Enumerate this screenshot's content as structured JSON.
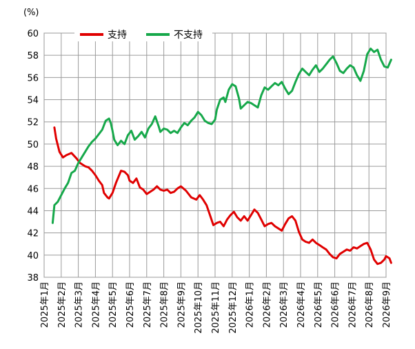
{
  "chart_data": {
    "type": "line",
    "title": "",
    "xlabel": "",
    "ylabel": "",
    "unit_label": "(%)",
    "ylim": [
      38,
      60
    ],
    "y_ticks": [
      "38",
      "40",
      "42",
      "44",
      "46",
      "48",
      "50",
      "52",
      "54",
      "56",
      "58",
      "60"
    ],
    "x_ticks": [
      "2025年1月",
      "2025年2月",
      "2025年3月",
      "2025年4月",
      "2025年5月",
      "2025年6月",
      "2025年7月",
      "2025年8月",
      "2025年9月",
      "2025年10月",
      "2025年11月",
      "2025年12月",
      "2026年1月",
      "2026年2月",
      "2026年3月",
      "2026年4月",
      "2026年5月",
      "2026年6月",
      "2026年7月",
      "2026年8月",
      "2026年9月"
    ],
    "x_unit": "months since 2025年1月",
    "grid": true,
    "legend_position": "top",
    "series": [
      {
        "name": "支持",
        "color": "#e00000",
        "x": [
          0.6,
          0.7,
          0.9,
          1.1,
          1.3,
          1.6,
          1.9,
          2.1,
          2.4,
          2.6,
          2.8,
          3.0,
          3.2,
          3.4,
          3.5,
          3.7,
          3.8,
          4.0,
          4.2,
          4.5,
          4.7,
          4.9,
          5.0,
          5.2,
          5.4,
          5.6,
          5.8,
          6.0,
          6.2,
          6.4,
          6.6,
          6.8,
          7.0,
          7.2,
          7.4,
          7.6,
          7.8,
          8.0,
          8.3,
          8.6,
          8.9,
          9.1,
          9.3,
          9.5,
          9.7,
          9.9,
          10.1,
          10.3,
          10.5,
          10.7,
          10.9,
          11.1,
          11.3,
          11.5,
          11.7,
          11.9,
          12.1,
          12.3,
          12.5,
          12.7,
          12.9,
          13.1,
          13.3,
          13.5,
          13.7,
          13.9,
          14.1,
          14.3,
          14.5,
          14.7,
          14.9,
          15.1,
          15.3,
          15.5,
          15.7,
          15.9,
          16.1,
          16.3,
          16.5,
          16.7,
          16.9,
          17.1,
          17.3,
          17.5,
          17.7,
          17.9,
          18.1,
          18.3,
          18.5,
          18.7,
          18.9,
          19.1,
          19.3,
          19.5,
          19.7,
          19.9,
          20.0,
          20.2,
          20.3
        ],
        "values": [
          51.5,
          50.5,
          49.3,
          48.8,
          49.0,
          49.2,
          48.7,
          48.3,
          48.0,
          47.9,
          47.6,
          47.2,
          46.7,
          46.3,
          45.6,
          45.2,
          45.1,
          45.6,
          46.5,
          47.6,
          47.5,
          47.2,
          46.7,
          46.5,
          46.9,
          46.1,
          45.9,
          45.5,
          45.7,
          45.9,
          46.2,
          45.9,
          45.8,
          45.9,
          45.6,
          45.7,
          46.0,
          46.2,
          45.8,
          45.2,
          45.0,
          45.4,
          45.0,
          44.5,
          43.6,
          42.7,
          42.9,
          43.0,
          42.6,
          43.2,
          43.6,
          43.9,
          43.4,
          43.1,
          43.5,
          43.1,
          43.6,
          44.1,
          43.8,
          43.2,
          42.6,
          42.8,
          42.9,
          42.6,
          42.4,
          42.2,
          42.8,
          43.3,
          43.5,
          43.1,
          42.1,
          41.4,
          41.2,
          41.1,
          41.4,
          41.1,
          40.9,
          40.7,
          40.5,
          40.1,
          39.8,
          39.7,
          40.1,
          40.3,
          40.5,
          40.4,
          40.7,
          40.6,
          40.8,
          41.0,
          41.1,
          40.5,
          39.6,
          39.2,
          39.3,
          39.6,
          39.9,
          39.7,
          39.3
        ]
      },
      {
        "name": "不支持",
        "color": "#16a84a",
        "x": [
          0.5,
          0.6,
          0.8,
          1.0,
          1.2,
          1.4,
          1.6,
          1.8,
          2.0,
          2.2,
          2.4,
          2.6,
          2.8,
          3.0,
          3.2,
          3.4,
          3.6,
          3.8,
          3.9,
          4.0,
          4.1,
          4.3,
          4.5,
          4.7,
          4.9,
          5.1,
          5.3,
          5.5,
          5.7,
          5.9,
          6.1,
          6.3,
          6.5,
          6.7,
          6.8,
          7.0,
          7.2,
          7.4,
          7.6,
          7.8,
          8.0,
          8.2,
          8.4,
          8.6,
          8.8,
          9.0,
          9.2,
          9.4,
          9.6,
          9.8,
          10.0,
          10.1,
          10.3,
          10.5,
          10.6,
          10.8,
          11.0,
          11.2,
          11.4,
          11.5,
          11.7,
          11.9,
          12.1,
          12.3,
          12.5,
          12.7,
          12.9,
          13.1,
          13.3,
          13.5,
          13.7,
          13.9,
          14.1,
          14.3,
          14.5,
          14.7,
          14.9,
          15.1,
          15.3,
          15.5,
          15.7,
          15.9,
          16.1,
          16.3,
          16.5,
          16.7,
          16.9,
          17.1,
          17.3,
          17.5,
          17.7,
          17.9,
          18.1,
          18.3,
          18.5,
          18.7,
          18.9,
          19.1,
          19.3,
          19.5,
          19.7,
          19.9,
          20.1,
          20.3
        ],
        "values": [
          42.9,
          44.5,
          44.8,
          45.4,
          46.0,
          46.5,
          47.4,
          47.6,
          48.3,
          48.8,
          49.3,
          49.8,
          50.2,
          50.5,
          50.9,
          51.3,
          52.1,
          52.3,
          51.9,
          51.2,
          50.4,
          49.9,
          50.3,
          50.0,
          50.8,
          51.2,
          50.4,
          50.7,
          51.1,
          50.6,
          51.4,
          51.8,
          52.5,
          51.6,
          51.1,
          51.4,
          51.3,
          51.0,
          51.2,
          51.0,
          51.5,
          51.9,
          51.7,
          52.1,
          52.4,
          52.9,
          52.6,
          52.1,
          51.9,
          51.8,
          52.2,
          53.1,
          54.0,
          54.2,
          53.8,
          54.9,
          55.4,
          55.2,
          54.1,
          53.2,
          53.5,
          53.8,
          53.7,
          53.5,
          53.3,
          54.4,
          55.1,
          54.9,
          55.2,
          55.5,
          55.3,
          55.6,
          55.0,
          54.5,
          54.8,
          55.6,
          56.3,
          56.8,
          56.5,
          56.2,
          56.7,
          57.1,
          56.5,
          56.8,
          57.2,
          57.6,
          57.9,
          57.3,
          56.6,
          56.4,
          56.8,
          57.1,
          56.9,
          56.2,
          55.7,
          56.6,
          58.1,
          58.6,
          58.3,
          58.5,
          57.6,
          57.0,
          56.9,
          57.6
        ]
      }
    ]
  }
}
